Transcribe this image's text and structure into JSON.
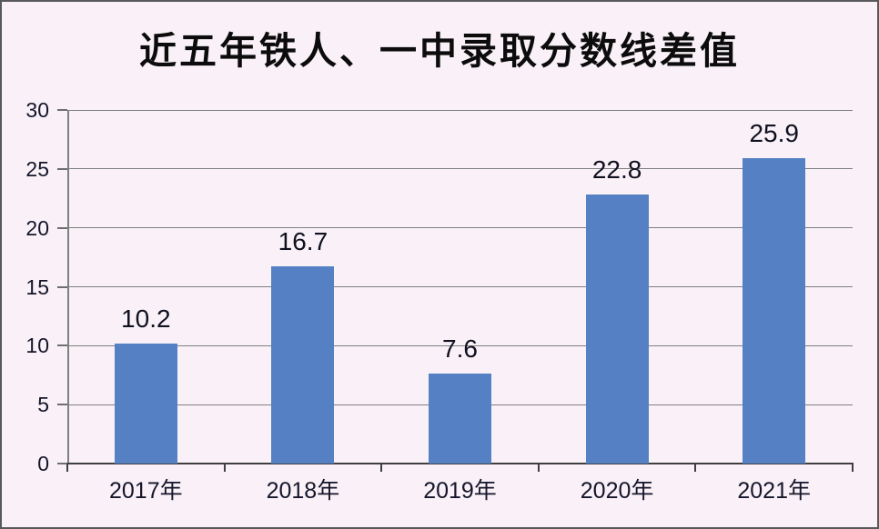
{
  "window": {
    "background_color": "#f9f1f7",
    "border_color": "#58595b"
  },
  "chart_data": {
    "type": "bar",
    "title": "近五年铁人、一中录取分数线差值",
    "categories": [
      "2017年",
      "2018年",
      "2019年",
      "2020年",
      "2021年"
    ],
    "values": [
      10.2,
      16.7,
      7.6,
      22.8,
      25.9
    ],
    "data_labels": [
      "10.2",
      "16.7",
      "7.6",
      "22.8",
      "25.9"
    ],
    "xlabel": "",
    "ylabel": "",
    "ylim": [
      0,
      30
    ],
    "yticks": [
      0,
      5,
      10,
      15,
      20,
      25,
      30
    ],
    "grid": true,
    "legend_position": "none",
    "bar_color": "#5581c4",
    "grid_color": "#7f7f7f",
    "axis_color": "#3f3f3f",
    "text_color": "#15152a"
  }
}
